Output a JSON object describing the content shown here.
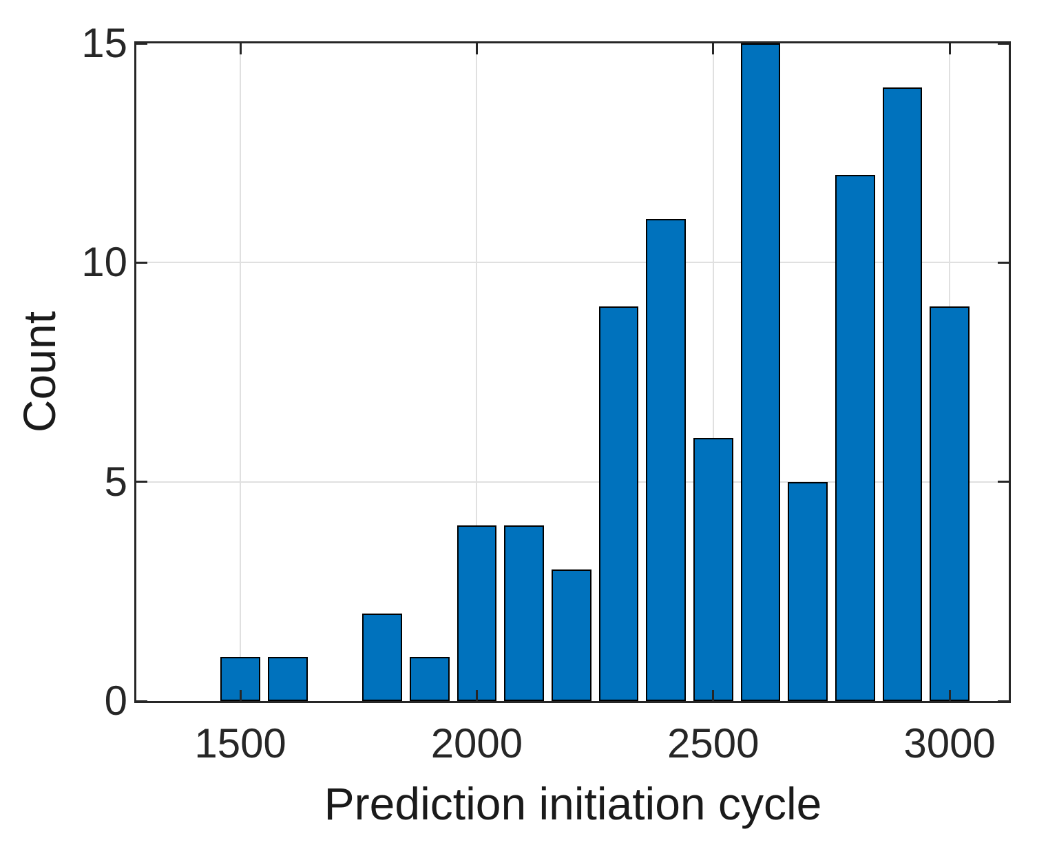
{
  "figure": {
    "background": "#ffffff"
  },
  "chart_data": {
    "type": "bar",
    "title": "",
    "xlabel": "Prediction initiation cycle",
    "ylabel": "Count",
    "x": [
      1500,
      1600,
      1700,
      1800,
      1900,
      2000,
      2100,
      2200,
      2300,
      2400,
      2500,
      2600,
      2700,
      2800,
      2900,
      3000
    ],
    "values": [
      1,
      1,
      0,
      2,
      1,
      4,
      4,
      3,
      9,
      11,
      6,
      15,
      5,
      12,
      14,
      9
    ],
    "bin_width": 100,
    "bar_width_fraction": 0.84,
    "xlim": [
      1280,
      3125
    ],
    "ylim": [
      0,
      15
    ],
    "xticks": [
      1500,
      2000,
      2500,
      3000
    ],
    "yticks": [
      0,
      5,
      10,
      15
    ],
    "grid": true,
    "legend_position": "none",
    "bar_color": "#0072BD",
    "bar_edge_color": "#000000",
    "axis_color": "#262626",
    "grid_color": "#e0e0e0",
    "tick_direction": "in"
  }
}
